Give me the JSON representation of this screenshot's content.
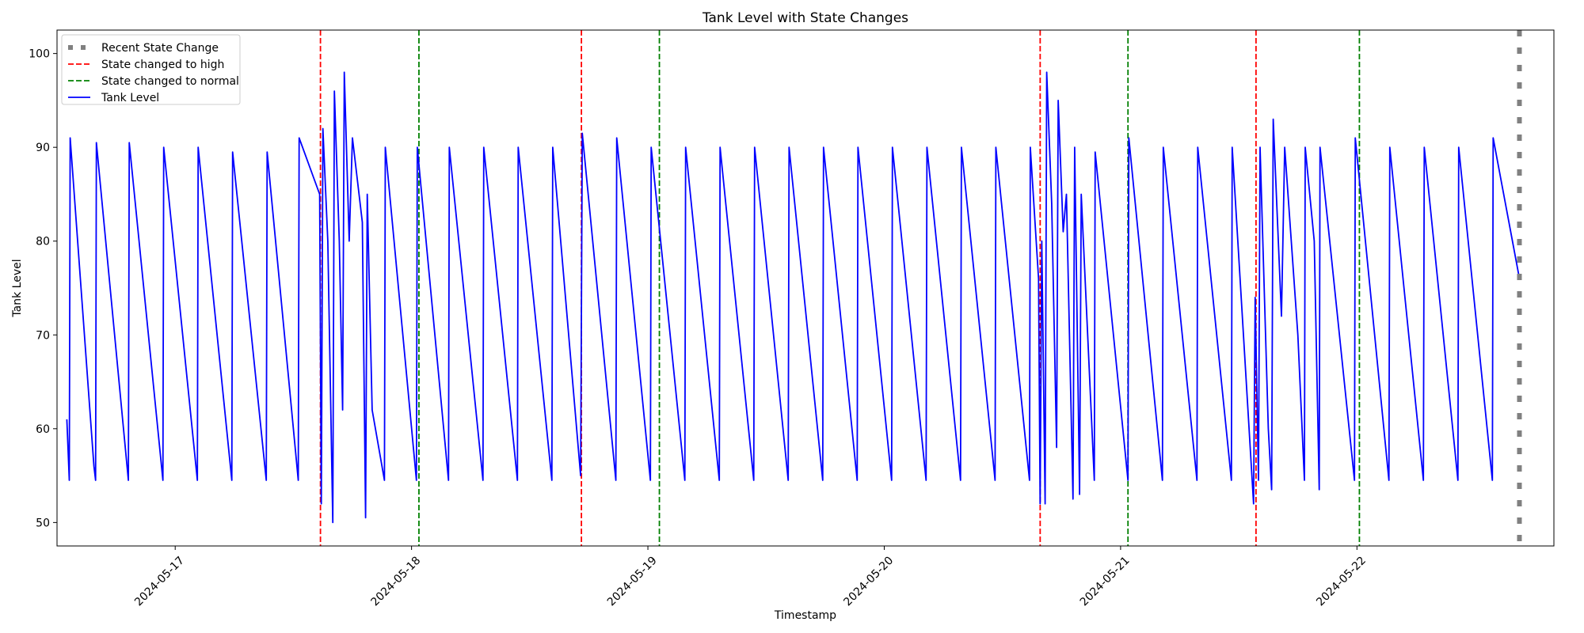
{
  "chart_data": {
    "type": "line",
    "title": "Tank Level with State Changes",
    "xlabel": "Timestamp",
    "ylabel": "Tank Level",
    "x_range": [
      "2024-05-16T12:00",
      "2024-05-22T20:00"
    ],
    "ylim": [
      47.5,
      102.5
    ],
    "y_ticks": [
      50,
      60,
      70,
      80,
      90,
      100
    ],
    "x_ticks": [
      "2024-05-17",
      "2024-05-18",
      "2024-05-19",
      "2024-05-20",
      "2024-05-21",
      "2024-05-22"
    ],
    "grid": false,
    "legend": {
      "position": "upper-left",
      "entries": [
        {
          "label": "Recent State Change",
          "color": "#808080",
          "style": "dotted"
        },
        {
          "label": "State changed to high",
          "color": "#ff0000",
          "style": "dashed"
        },
        {
          "label": "State changed to normal",
          "color": "#008000",
          "style": "dashed"
        },
        {
          "label": "Tank Level",
          "color": "#0000ff",
          "style": "solid"
        }
      ]
    },
    "state_changes": {
      "high": [
        "2024-05-17T14:45",
        "2024-05-18T17:15",
        "2024-05-20T15:50",
        "2024-05-21T13:45"
      ],
      "normal": [
        "2024-05-18T00:45",
        "2024-05-19T01:10",
        "2024-05-21T00:45",
        "2024-05-22T00:15"
      ],
      "recent": [
        "2024-05-22T16:30"
      ]
    },
    "series": [
      {
        "name": "Tank Level",
        "color": "#0000ff",
        "points": [
          [
            "2024-05-16T13:00",
            61.0
          ],
          [
            "2024-05-16T13:15",
            54.5
          ],
          [
            "2024-05-16T13:20",
            91.0
          ],
          [
            "2024-05-16T15:45",
            56.0
          ],
          [
            "2024-05-16T15:55",
            54.5
          ],
          [
            "2024-05-16T16:00",
            90.5
          ],
          [
            "2024-05-16T19:15",
            54.5
          ],
          [
            "2024-05-16T19:20",
            90.5
          ],
          [
            "2024-05-16T22:45",
            54.5
          ],
          [
            "2024-05-16T22:50",
            90.0
          ],
          [
            "2024-05-17T02:15",
            54.5
          ],
          [
            "2024-05-17T02:20",
            90.0
          ],
          [
            "2024-05-17T05:45",
            54.5
          ],
          [
            "2024-05-17T05:50",
            89.5
          ],
          [
            "2024-05-17T09:15",
            54.5
          ],
          [
            "2024-05-17T09:20",
            89.5
          ],
          [
            "2024-05-17T12:30",
            54.5
          ],
          [
            "2024-05-17T12:35",
            91.0
          ],
          [
            "2024-05-17T14:40",
            85.0
          ],
          [
            "2024-05-17T14:50",
            52.0
          ],
          [
            "2024-05-17T15:00",
            92.0
          ],
          [
            "2024-05-17T15:30",
            80.0
          ],
          [
            "2024-05-17T16:00",
            50.0
          ],
          [
            "2024-05-17T16:10",
            96.0
          ],
          [
            "2024-05-17T16:40",
            80.0
          ],
          [
            "2024-05-17T17:00",
            62.0
          ],
          [
            "2024-05-17T17:10",
            98.0
          ],
          [
            "2024-05-17T17:40",
            80.0
          ],
          [
            "2024-05-17T18:00",
            91.0
          ],
          [
            "2024-05-17T19:00",
            82.0
          ],
          [
            "2024-05-17T19:20",
            50.5
          ],
          [
            "2024-05-17T19:30",
            85.0
          ],
          [
            "2024-05-17T20:00",
            62.0
          ],
          [
            "2024-05-17T21:15",
            54.5
          ],
          [
            "2024-05-17T21:20",
            90.0
          ],
          [
            "2024-05-18T00:30",
            54.5
          ],
          [
            "2024-05-18T00:35",
            90.0
          ],
          [
            "2024-05-18T03:45",
            54.5
          ],
          [
            "2024-05-18T03:50",
            90.0
          ],
          [
            "2024-05-18T07:15",
            54.5
          ],
          [
            "2024-05-18T07:20",
            90.0
          ],
          [
            "2024-05-18T10:45",
            54.5
          ],
          [
            "2024-05-18T10:50",
            90.0
          ],
          [
            "2024-05-18T14:15",
            54.5
          ],
          [
            "2024-05-18T14:20",
            90.0
          ],
          [
            "2024-05-18T17:10",
            55.0
          ],
          [
            "2024-05-18T17:20",
            91.5
          ],
          [
            "2024-05-18T20:45",
            54.5
          ],
          [
            "2024-05-18T20:50",
            91.0
          ],
          [
            "2024-05-19T00:15",
            54.5
          ],
          [
            "2024-05-19T00:20",
            90.0
          ],
          [
            "2024-05-19T03:45",
            54.5
          ],
          [
            "2024-05-19T03:50",
            90.0
          ],
          [
            "2024-05-19T07:15",
            54.5
          ],
          [
            "2024-05-19T07:20",
            90.0
          ],
          [
            "2024-05-19T10:45",
            54.5
          ],
          [
            "2024-05-19T10:50",
            90.0
          ],
          [
            "2024-05-19T14:15",
            54.5
          ],
          [
            "2024-05-19T14:20",
            90.0
          ],
          [
            "2024-05-19T17:45",
            54.5
          ],
          [
            "2024-05-19T17:50",
            90.0
          ],
          [
            "2024-05-19T21:15",
            54.5
          ],
          [
            "2024-05-19T21:20",
            90.0
          ],
          [
            "2024-05-20T00:45",
            54.5
          ],
          [
            "2024-05-20T00:50",
            90.0
          ],
          [
            "2024-05-20T04:15",
            54.5
          ],
          [
            "2024-05-20T04:20",
            90.0
          ],
          [
            "2024-05-20T07:45",
            54.5
          ],
          [
            "2024-05-20T07:50",
            90.0
          ],
          [
            "2024-05-20T11:15",
            54.5
          ],
          [
            "2024-05-20T11:20",
            90.0
          ],
          [
            "2024-05-20T14:45",
            54.5
          ],
          [
            "2024-05-20T14:50",
            90.0
          ],
          [
            "2024-05-20T15:40",
            76.0
          ],
          [
            "2024-05-20T15:50",
            52.0
          ],
          [
            "2024-05-20T16:00",
            80.0
          ],
          [
            "2024-05-20T16:20",
            52.0
          ],
          [
            "2024-05-20T16:30",
            98.0
          ],
          [
            "2024-05-20T17:00",
            84.0
          ],
          [
            "2024-05-20T17:30",
            58.0
          ],
          [
            "2024-05-20T17:40",
            95.0
          ],
          [
            "2024-05-20T18:10",
            81.0
          ],
          [
            "2024-05-20T18:30",
            85.0
          ],
          [
            "2024-05-20T19:10",
            52.5
          ],
          [
            "2024-05-20T19:20",
            90.0
          ],
          [
            "2024-05-20T19:50",
            53.0
          ],
          [
            "2024-05-20T20:00",
            85.0
          ],
          [
            "2024-05-20T21:20",
            54.5
          ],
          [
            "2024-05-20T21:25",
            89.5
          ],
          [
            "2024-05-21T00:45",
            54.5
          ],
          [
            "2024-05-21T00:50",
            91.0
          ],
          [
            "2024-05-21T04:15",
            54.5
          ],
          [
            "2024-05-21T04:20",
            90.0
          ],
          [
            "2024-05-21T07:45",
            54.5
          ],
          [
            "2024-05-21T07:50",
            90.0
          ],
          [
            "2024-05-21T11:15",
            54.5
          ],
          [
            "2024-05-21T11:20",
            90.0
          ],
          [
            "2024-05-21T13:30",
            52.0
          ],
          [
            "2024-05-21T13:40",
            74.0
          ],
          [
            "2024-05-21T14:00",
            54.5
          ],
          [
            "2024-05-21T14:10",
            90.0
          ],
          [
            "2024-05-21T15:00",
            60.0
          ],
          [
            "2024-05-21T15:20",
            53.5
          ],
          [
            "2024-05-21T15:30",
            93.0
          ],
          [
            "2024-05-21T16:20",
            72.0
          ],
          [
            "2024-05-21T16:40",
            90.0
          ],
          [
            "2024-05-21T17:20",
            80.0
          ],
          [
            "2024-05-21T18:00",
            70.0
          ],
          [
            "2024-05-21T18:40",
            54.5
          ],
          [
            "2024-05-21T18:45",
            90.0
          ],
          [
            "2024-05-21T19:40",
            80.0
          ],
          [
            "2024-05-21T20:10",
            53.5
          ],
          [
            "2024-05-21T20:15",
            90.0
          ],
          [
            "2024-05-21T23:45",
            54.5
          ],
          [
            "2024-05-21T23:50",
            91.0
          ],
          [
            "2024-05-22T03:15",
            54.5
          ],
          [
            "2024-05-22T03:20",
            90.0
          ],
          [
            "2024-05-22T06:45",
            54.5
          ],
          [
            "2024-05-22T06:50",
            90.0
          ],
          [
            "2024-05-22T10:15",
            54.5
          ],
          [
            "2024-05-22T10:20",
            90.0
          ],
          [
            "2024-05-22T13:45",
            54.5
          ],
          [
            "2024-05-22T13:50",
            91.0
          ],
          [
            "2024-05-22T16:30",
            76.0
          ]
        ]
      }
    ]
  }
}
